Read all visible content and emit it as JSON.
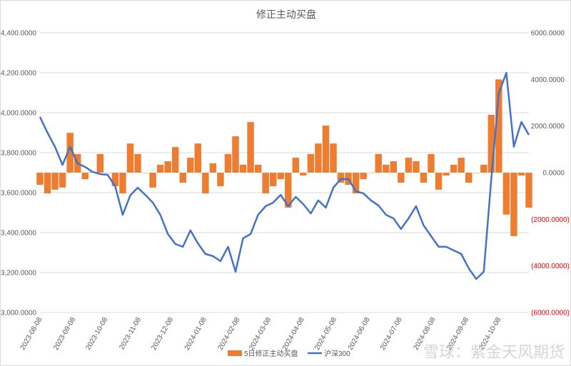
{
  "chart_data": {
    "type": "bar+line",
    "title": "修正主动买盘",
    "xlabel": "",
    "ylabel_left": "",
    "ylabel_right": "",
    "x_tick_labels": [
      "2023-08-08",
      "2023-09-08",
      "2023-10-08",
      "2023-11-08",
      "2023-12-08",
      "2024-01-08",
      "2024-02-08",
      "2024-03-08",
      "2024-04-08",
      "2024-05-08",
      "2024-06-08",
      "2024-07-08",
      "2024-08-08",
      "2024-09-08",
      "2024-10-08"
    ],
    "y_left": {
      "range": [
        3000,
        4400
      ],
      "step": 200,
      "tick_labels": [
        "3,000.0000",
        "3,200.0000",
        "3,400.0000",
        "3,600.0000",
        "3,800.0000",
        "4,000.0000",
        "4,200.0000",
        "4,400.0000"
      ]
    },
    "y_right": {
      "range": [
        -6000,
        6000
      ],
      "step": 2000,
      "tick_labels": [
        "(6000.0000)",
        "(4000.0000)",
        "(2000.0000)",
        "0.0000",
        "2000.0000",
        "4000.0000",
        "6000.0000"
      ],
      "negative_color": "#E00000"
    },
    "grid": true,
    "legend_position": "bottom",
    "x": [
      "2023-08-08",
      "2023-08-15",
      "2023-08-22",
      "2023-08-29",
      "2023-09-05",
      "2023-09-12",
      "2023-09-19",
      "2023-09-26",
      "2023-10-03",
      "2023-10-10",
      "2023-10-17",
      "2023-10-24",
      "2023-10-31",
      "2023-11-07",
      "2023-11-14",
      "2023-11-21",
      "2023-11-28",
      "2023-12-05",
      "2023-12-12",
      "2023-12-19",
      "2023-12-26",
      "2024-01-02",
      "2024-01-09",
      "2024-01-16",
      "2024-01-23",
      "2024-01-30",
      "2024-02-06",
      "2024-02-13",
      "2024-02-20",
      "2024-02-27",
      "2024-03-05",
      "2024-03-12",
      "2024-03-19",
      "2024-03-26",
      "2024-04-02",
      "2024-04-09",
      "2024-04-16",
      "2024-04-23",
      "2024-04-30",
      "2024-05-07",
      "2024-05-14",
      "2024-05-21",
      "2024-05-28",
      "2024-06-04",
      "2024-06-11",
      "2024-06-18",
      "2024-06-25",
      "2024-07-02",
      "2024-07-09",
      "2024-07-16",
      "2024-07-23",
      "2024-07-30",
      "2024-08-06",
      "2024-08-13",
      "2024-08-20",
      "2024-08-27",
      "2024-09-03",
      "2024-09-10",
      "2024-09-17",
      "2024-09-24",
      "2024-10-01",
      "2024-10-08",
      "2024-10-15",
      "2024-10-22",
      "2024-10-29",
      "2024-11-05"
    ],
    "series": [
      {
        "name": "5日修正主动买盘",
        "type": "bar",
        "axis": "right",
        "color": "#ED7D31",
        "values": [
          -520,
          -890,
          -730,
          -640,
          1710,
          800,
          -280,
          30,
          800,
          0,
          -580,
          -890,
          1250,
          800,
          0,
          -640,
          340,
          490,
          1100,
          -430,
          640,
          1250,
          -890,
          400,
          -580,
          800,
          1560,
          340,
          2170,
          340,
          -890,
          -580,
          -280,
          -1500,
          640,
          -120,
          800,
          1250,
          2020,
          1250,
          -430,
          -520,
          -890,
          -280,
          0,
          800,
          340,
          490,
          -430,
          640,
          490,
          -430,
          800,
          -730,
          -120,
          340,
          640,
          -430,
          0,
          340,
          2480,
          4000,
          -1800,
          -2720,
          -120,
          -1500
        ]
      },
      {
        "name": "沪深300",
        "type": "line",
        "axis": "left",
        "color": "#4472C4",
        "values": [
          3979,
          3900,
          3829,
          3739,
          3830,
          3746,
          3729,
          3704,
          3693,
          3689,
          3632,
          3489,
          3586,
          3625,
          3589,
          3550,
          3489,
          3393,
          3343,
          3329,
          3411,
          3346,
          3293,
          3282,
          3257,
          3329,
          3204,
          3371,
          3393,
          3489,
          3532,
          3550,
          3589,
          3532,
          3579,
          3543,
          3496,
          3561,
          3525,
          3625,
          3668,
          3668,
          3607,
          3596,
          3561,
          3536,
          3489,
          3471,
          3418,
          3471,
          3532,
          3436,
          3382,
          3329,
          3329,
          3311,
          3293,
          3221,
          3168,
          3204,
          3668,
          4096,
          4200,
          3830,
          3954,
          3889
        ]
      }
    ]
  },
  "watermark": "雪球：紫金天风期货"
}
